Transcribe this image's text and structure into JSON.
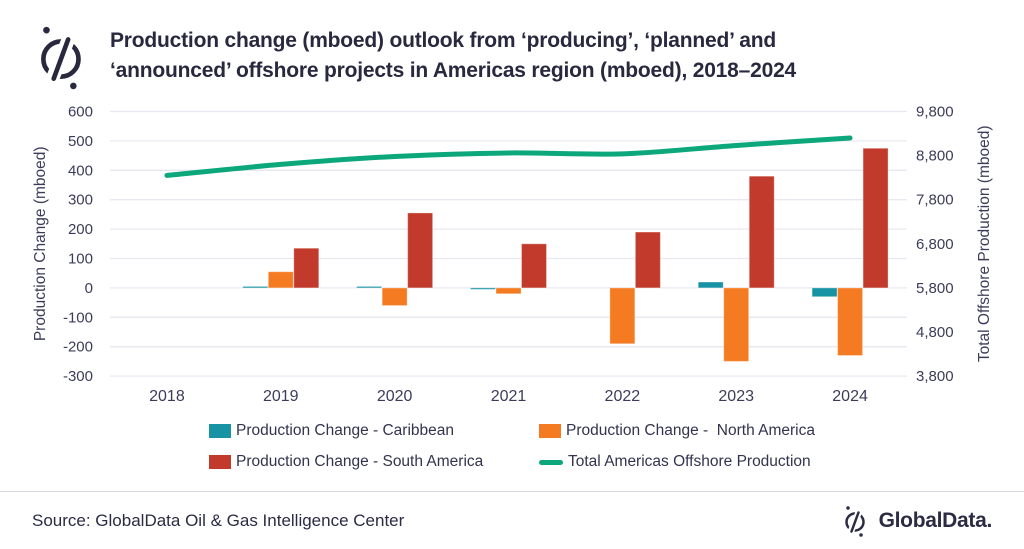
{
  "header": {
    "title_lines": [
      "Production change (mboed) outlook from ‘producing’, ‘planned’ and",
      "‘announced’ offshore projects in Americas region (mboed), 2018–2024"
    ]
  },
  "chart_data": {
    "type": "bar",
    "categories": [
      "2018",
      "2019",
      "2020",
      "2021",
      "2022",
      "2023",
      "2024"
    ],
    "series": [
      {
        "name": "Production Change - Caribbean",
        "kind": "bar",
        "axis": "left",
        "color": "#1793a4",
        "values": [
          0,
          5,
          5,
          -5,
          0,
          20,
          -30
        ]
      },
      {
        "name": "Production Change -  North America",
        "kind": "bar",
        "axis": "left",
        "color": "#f47b22",
        "values": [
          0,
          55,
          -60,
          -20,
          -190,
          -250,
          -230
        ]
      },
      {
        "name": "Production Change - South America",
        "kind": "bar",
        "axis": "left",
        "color": "#c23a2b",
        "values": [
          0,
          135,
          255,
          150,
          190,
          380,
          475
        ]
      },
      {
        "name": "Total Americas Offshore Production",
        "kind": "line",
        "axis": "right",
        "color": "#0ca87c",
        "values": [
          8350,
          8600,
          8780,
          8860,
          8840,
          9030,
          9200
        ]
      }
    ],
    "left_axis": {
      "label": "Production Change (mboed)",
      "min": -300,
      "max": 600,
      "step": 100
    },
    "right_axis": {
      "label": "Total Offshore Production (mboed)",
      "min": 3800,
      "max": 9800,
      "step": 1000
    },
    "grid": true,
    "legend_position": "bottom"
  },
  "footer": {
    "source": "Source: GlobalData Oil & Gas Intelligence Center",
    "brand": "GlobalData."
  },
  "colors": {
    "grid": "#e8e8f1",
    "tick_text": "#3c3c5a",
    "title_text": "#28283f",
    "divider": "#d6d6e0"
  }
}
